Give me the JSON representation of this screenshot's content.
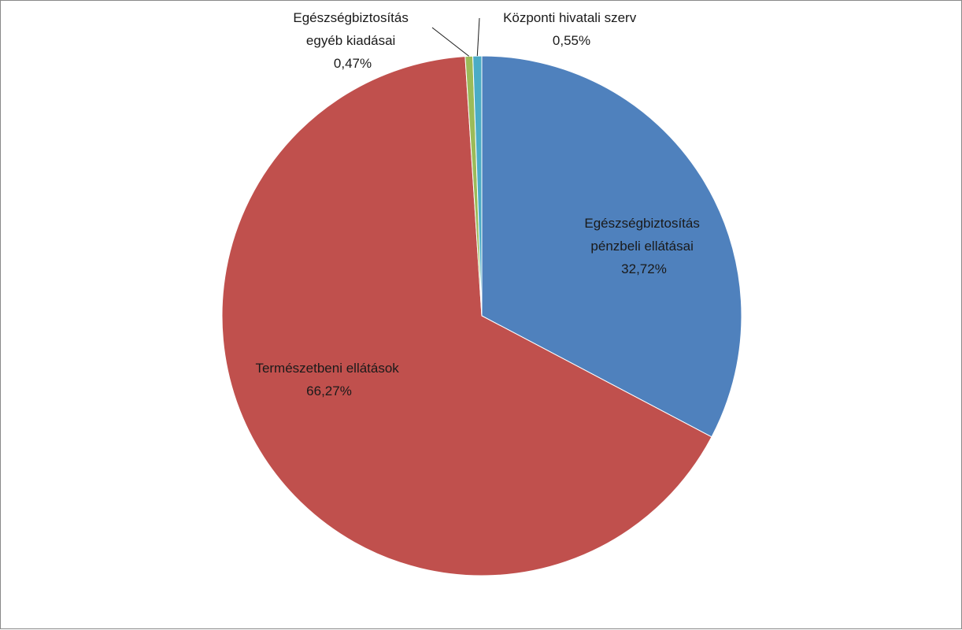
{
  "chart_data": {
    "type": "pie",
    "start_angle_deg": 0,
    "direction": "clockwise",
    "slices": [
      {
        "name": "Egészségbiztosítás pénzbeli ellátásai",
        "label_lines": [
          "Egészségbiztosítás",
          "pénzbeli ellátásai"
        ],
        "value": 32.72,
        "value_label": "32,72%",
        "color": "#4f81bd"
      },
      {
        "name": "Természetbeni ellátások",
        "label_lines": [
          "Természetbeni ellátások"
        ],
        "value": 66.27,
        "value_label": "66,27%",
        "color": "#c0504d"
      },
      {
        "name": "Egészségbiztosítás egyéb kiadásai",
        "label_lines": [
          "Egészségbiztosítás",
          "egyéb kiadásai"
        ],
        "value": 0.47,
        "value_label": "0,47%",
        "color": "#9bbb59"
      },
      {
        "name": "Központi hivatali szerv",
        "label_lines": [
          "Központi hivatali szerv"
        ],
        "value": 0.55,
        "value_label": "0,55%",
        "color": "#4bacc6"
      }
    ]
  }
}
